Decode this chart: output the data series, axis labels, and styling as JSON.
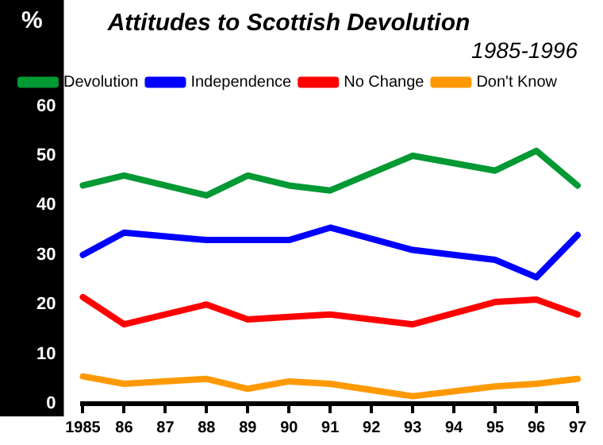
{
  "chart_data": {
    "type": "line",
    "title": "Attitudes to Scottish Devolution",
    "subtitle": "1985-1996",
    "ylabel": "%",
    "x": [
      1985,
      1986,
      1988,
      1989,
      1990,
      1991,
      1993,
      1995,
      1996,
      1997
    ],
    "series": [
      {
        "name": "Devolution",
        "color": "#009933",
        "values": [
          44,
          46,
          42,
          46,
          44,
          43,
          50,
          47,
          51,
          44
        ]
      },
      {
        "name": "Independence",
        "color": "#0000ff",
        "values": [
          30,
          34.5,
          33,
          33,
          33,
          35.5,
          31,
          29,
          25.5,
          34
        ]
      },
      {
        "name": "No Change",
        "color": "#ff0000",
        "values": [
          21.5,
          16,
          20,
          17,
          17.5,
          18,
          16,
          20.5,
          21,
          18
        ]
      },
      {
        "name": "Don't Know",
        "color": "#ff9900",
        "values": [
          5.5,
          4,
          5,
          3,
          4.5,
          4,
          1.5,
          3.5,
          4,
          5
        ]
      }
    ],
    "xlim": [
      1985,
      1997
    ],
    "xticks": [
      1985,
      {
        "value": 1986,
        "label": "86"
      },
      {
        "value": 1987,
        "label": "87"
      },
      {
        "value": 1988,
        "label": "88"
      },
      {
        "value": 1989,
        "label": "89"
      },
      {
        "value": 1990,
        "label": "90"
      },
      {
        "value": 1991,
        "label": "91"
      },
      {
        "value": 1992,
        "label": "92"
      },
      {
        "value": 1993,
        "label": "93"
      },
      {
        "value": 1994,
        "label": "94"
      },
      {
        "value": 1995,
        "label": "95"
      },
      {
        "value": 1996,
        "label": "96"
      },
      {
        "value": 1997,
        "label": "97"
      }
    ],
    "ylim": [
      0,
      60
    ],
    "yticks": [
      0,
      10,
      20,
      30,
      40,
      50,
      60
    ],
    "grid": false,
    "legend": "top left",
    "marker": "none",
    "line_style": "solid"
  }
}
